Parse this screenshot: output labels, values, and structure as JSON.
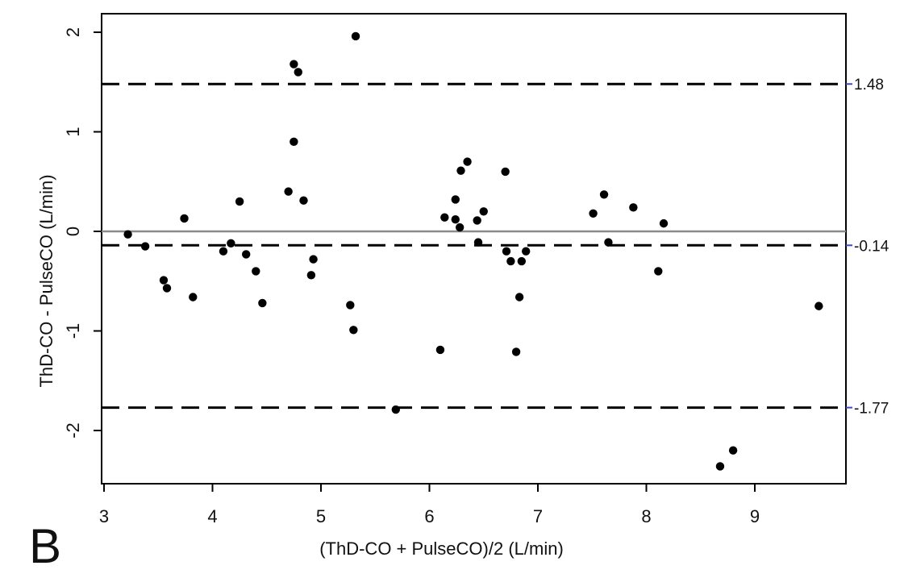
{
  "panel_label": "B",
  "chart_data": {
    "type": "scatter",
    "title": "",
    "xlabel": "(ThD-CO + PulseCO)/2 (L/min)",
    "ylabel": "ThD-CO - PulseCO (L/min)",
    "xlim": [
      3,
      9.85
    ],
    "ylim": [
      -2.52,
      2.0
    ],
    "xticks": [
      3,
      4,
      5,
      6,
      7,
      8,
      9
    ],
    "yticks": [
      -2,
      -1,
      0,
      1,
      2
    ],
    "grid": false,
    "zero_line": 0,
    "reference_lines": [
      {
        "value": 1.48,
        "label": "1.48"
      },
      {
        "value": -0.14,
        "label": "-0.14"
      },
      {
        "value": -1.77,
        "label": "-1.77"
      }
    ],
    "points": [
      {
        "x": 3.22,
        "y": -0.03
      },
      {
        "x": 3.38,
        "y": -0.15
      },
      {
        "x": 3.55,
        "y": -0.49
      },
      {
        "x": 3.58,
        "y": -0.57
      },
      {
        "x": 3.74,
        "y": 0.13
      },
      {
        "x": 3.82,
        "y": -0.66
      },
      {
        "x": 4.1,
        "y": -0.2
      },
      {
        "x": 4.17,
        "y": -0.12
      },
      {
        "x": 4.25,
        "y": 0.3
      },
      {
        "x": 4.31,
        "y": -0.23
      },
      {
        "x": 4.4,
        "y": -0.4
      },
      {
        "x": 4.46,
        "y": -0.72
      },
      {
        "x": 4.7,
        "y": 0.4
      },
      {
        "x": 4.75,
        "y": 1.68
      },
      {
        "x": 4.75,
        "y": 0.9
      },
      {
        "x": 4.79,
        "y": 1.6
      },
      {
        "x": 4.84,
        "y": 0.31
      },
      {
        "x": 4.91,
        "y": -0.44
      },
      {
        "x": 4.93,
        "y": -0.28
      },
      {
        "x": 5.27,
        "y": -0.74
      },
      {
        "x": 5.3,
        "y": -0.99
      },
      {
        "x": 5.32,
        "y": 1.96
      },
      {
        "x": 5.69,
        "y": -1.79
      },
      {
        "x": 6.1,
        "y": -1.19
      },
      {
        "x": 6.14,
        "y": 0.14
      },
      {
        "x": 6.24,
        "y": 0.12
      },
      {
        "x": 6.24,
        "y": 0.32
      },
      {
        "x": 6.28,
        "y": 0.04
      },
      {
        "x": 6.29,
        "y": 0.61
      },
      {
        "x": 6.35,
        "y": 0.7
      },
      {
        "x": 6.44,
        "y": 0.11
      },
      {
        "x": 6.45,
        "y": -0.11
      },
      {
        "x": 6.5,
        "y": 0.2
      },
      {
        "x": 6.7,
        "y": 0.6
      },
      {
        "x": 6.71,
        "y": -0.2
      },
      {
        "x": 6.75,
        "y": -0.3
      },
      {
        "x": 6.8,
        "y": -1.21
      },
      {
        "x": 6.83,
        "y": -0.66
      },
      {
        "x": 6.85,
        "y": -0.3
      },
      {
        "x": 6.89,
        "y": -0.2
      },
      {
        "x": 7.51,
        "y": 0.18
      },
      {
        "x": 7.61,
        "y": 0.37
      },
      {
        "x": 7.65,
        "y": -0.11
      },
      {
        "x": 7.88,
        "y": 0.24
      },
      {
        "x": 8.11,
        "y": -0.4
      },
      {
        "x": 8.16,
        "y": 0.08
      },
      {
        "x": 8.68,
        "y": -2.36
      },
      {
        "x": 8.8,
        "y": -2.2
      },
      {
        "x": 9.59,
        "y": -0.75
      }
    ]
  }
}
